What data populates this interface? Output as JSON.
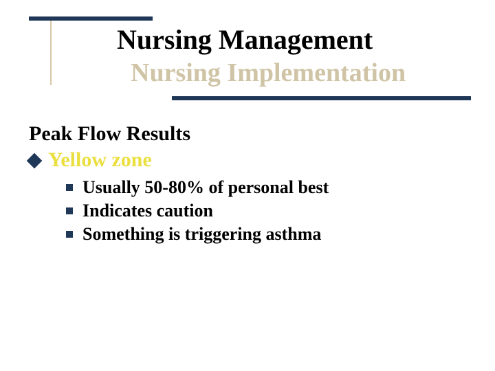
{
  "colors": {
    "accent_dark": "#203858",
    "accent_tan": "#d0c4a6",
    "vline_tan": "#d8c8a8",
    "yellow_text": "#eadf3f",
    "body_text": "#000000",
    "background": "#ffffff"
  },
  "typography": {
    "family": "Times New Roman",
    "title_size_pt": 40,
    "subtitle_size_pt": 38,
    "section_head_size_pt": 30,
    "bullet1_size_pt": 30,
    "bullet2_size_pt": 26,
    "weight_all": "bold"
  },
  "header": {
    "title": "Nursing Management",
    "subtitle": "Nursing Implementation"
  },
  "content": {
    "section_heading": "Peak Flow Results",
    "bullet1": {
      "label": "Yellow zone"
    },
    "bullet2_items": [
      "Usually 50-80% of personal best",
      "Indicates caution",
      "Something is triggering asthma"
    ]
  }
}
